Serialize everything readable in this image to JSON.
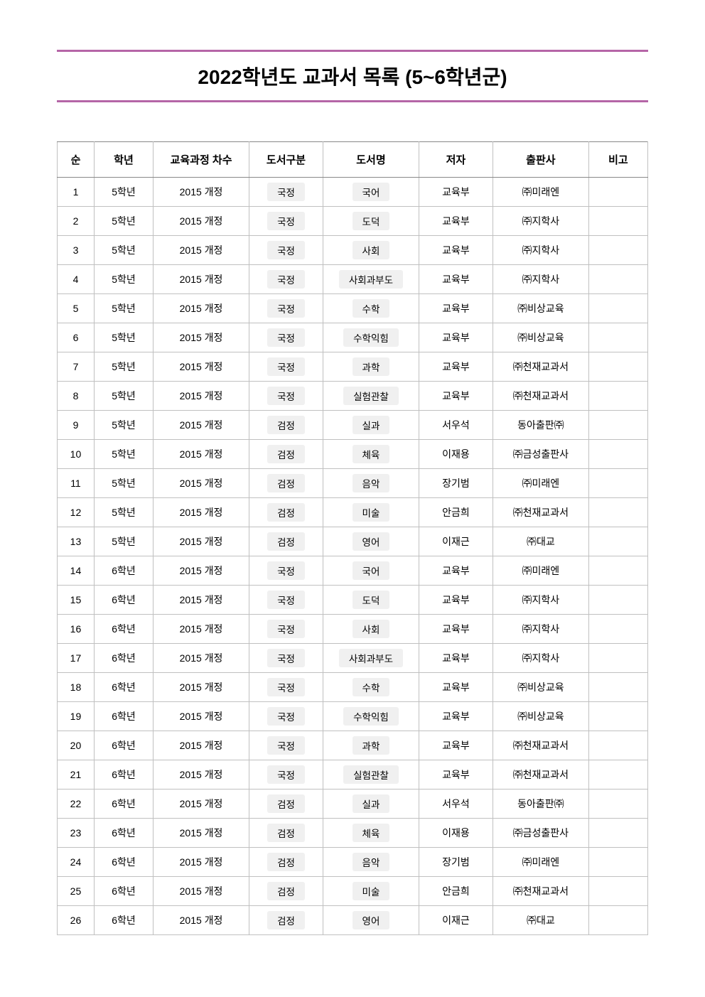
{
  "title": "2022학년도 교과서 목록 (5~6학년군)",
  "columns": [
    "순",
    "학년",
    "교육과정 차수",
    "도서구분",
    "도서명",
    "저자",
    "출판사",
    "비고"
  ],
  "rows": [
    {
      "idx": "1",
      "grade": "5학년",
      "curr": "2015 개정",
      "type": "국정",
      "name": "국어",
      "author": "교육부",
      "pub": "㈜미래엔",
      "note": ""
    },
    {
      "idx": "2",
      "grade": "5학년",
      "curr": "2015 개정",
      "type": "국정",
      "name": "도덕",
      "author": "교육부",
      "pub": "㈜지학사",
      "note": ""
    },
    {
      "idx": "3",
      "grade": "5학년",
      "curr": "2015 개정",
      "type": "국정",
      "name": "사회",
      "author": "교육부",
      "pub": "㈜지학사",
      "note": ""
    },
    {
      "idx": "4",
      "grade": "5학년",
      "curr": "2015 개정",
      "type": "국정",
      "name": "사회과부도",
      "author": "교육부",
      "pub": "㈜지학사",
      "note": ""
    },
    {
      "idx": "5",
      "grade": "5학년",
      "curr": "2015 개정",
      "type": "국정",
      "name": "수학",
      "author": "교육부",
      "pub": "㈜비상교육",
      "note": ""
    },
    {
      "idx": "6",
      "grade": "5학년",
      "curr": "2015 개정",
      "type": "국정",
      "name": "수학익힘",
      "author": "교육부",
      "pub": "㈜비상교육",
      "note": ""
    },
    {
      "idx": "7",
      "grade": "5학년",
      "curr": "2015 개정",
      "type": "국정",
      "name": "과학",
      "author": "교육부",
      "pub": "㈜천재교과서",
      "note": ""
    },
    {
      "idx": "8",
      "grade": "5학년",
      "curr": "2015 개정",
      "type": "국정",
      "name": "실험관찰",
      "author": "교육부",
      "pub": "㈜천재교과서",
      "note": ""
    },
    {
      "idx": "9",
      "grade": "5학년",
      "curr": "2015 개정",
      "type": "검정",
      "name": "실과",
      "author": "서우석",
      "pub": "동아출판㈜",
      "note": ""
    },
    {
      "idx": "10",
      "grade": "5학년",
      "curr": "2015 개정",
      "type": "검정",
      "name": "체육",
      "author": "이재용",
      "pub": "㈜금성출판사",
      "note": ""
    },
    {
      "idx": "11",
      "grade": "5학년",
      "curr": "2015 개정",
      "type": "검정",
      "name": "음악",
      "author": "장기범",
      "pub": "㈜미래엔",
      "note": ""
    },
    {
      "idx": "12",
      "grade": "5학년",
      "curr": "2015 개정",
      "type": "검정",
      "name": "미술",
      "author": "안금희",
      "pub": "㈜천재교과서",
      "note": ""
    },
    {
      "idx": "13",
      "grade": "5학년",
      "curr": "2015 개정",
      "type": "검정",
      "name": "영어",
      "author": "이재근",
      "pub": "㈜대교",
      "note": ""
    },
    {
      "idx": "14",
      "grade": "6학년",
      "curr": "2015 개정",
      "type": "국정",
      "name": "국어",
      "author": "교육부",
      "pub": "㈜미래엔",
      "note": ""
    },
    {
      "idx": "15",
      "grade": "6학년",
      "curr": "2015 개정",
      "type": "국정",
      "name": "도덕",
      "author": "교육부",
      "pub": "㈜지학사",
      "note": ""
    },
    {
      "idx": "16",
      "grade": "6학년",
      "curr": "2015 개정",
      "type": "국정",
      "name": "사회",
      "author": "교육부",
      "pub": "㈜지학사",
      "note": ""
    },
    {
      "idx": "17",
      "grade": "6학년",
      "curr": "2015 개정",
      "type": "국정",
      "name": "사회과부도",
      "author": "교육부",
      "pub": "㈜지학사",
      "note": ""
    },
    {
      "idx": "18",
      "grade": "6학년",
      "curr": "2015 개정",
      "type": "국정",
      "name": "수학",
      "author": "교육부",
      "pub": "㈜비상교육",
      "note": ""
    },
    {
      "idx": "19",
      "grade": "6학년",
      "curr": "2015 개정",
      "type": "국정",
      "name": "수학익힘",
      "author": "교육부",
      "pub": "㈜비상교육",
      "note": ""
    },
    {
      "idx": "20",
      "grade": "6학년",
      "curr": "2015 개정",
      "type": "국정",
      "name": "과학",
      "author": "교육부",
      "pub": "㈜천재교과서",
      "note": ""
    },
    {
      "idx": "21",
      "grade": "6학년",
      "curr": "2015 개정",
      "type": "국정",
      "name": "실험관찰",
      "author": "교육부",
      "pub": "㈜천재교과서",
      "note": ""
    },
    {
      "idx": "22",
      "grade": "6학년",
      "curr": "2015 개정",
      "type": "검정",
      "name": "실과",
      "author": "서우석",
      "pub": "동아출판㈜",
      "note": ""
    },
    {
      "idx": "23",
      "grade": "6학년",
      "curr": "2015 개정",
      "type": "검정",
      "name": "체육",
      "author": "이재용",
      "pub": "㈜금성출판사",
      "note": ""
    },
    {
      "idx": "24",
      "grade": "6학년",
      "curr": "2015 개정",
      "type": "검정",
      "name": "음악",
      "author": "장기범",
      "pub": "㈜미래엔",
      "note": ""
    },
    {
      "idx": "25",
      "grade": "6학년",
      "curr": "2015 개정",
      "type": "검정",
      "name": "미술",
      "author": "안금희",
      "pub": "㈜천재교과서",
      "note": ""
    },
    {
      "idx": "26",
      "grade": "6학년",
      "curr": "2015 개정",
      "type": "검정",
      "name": "영어",
      "author": "이재근",
      "pub": "㈜대교",
      "note": ""
    }
  ]
}
